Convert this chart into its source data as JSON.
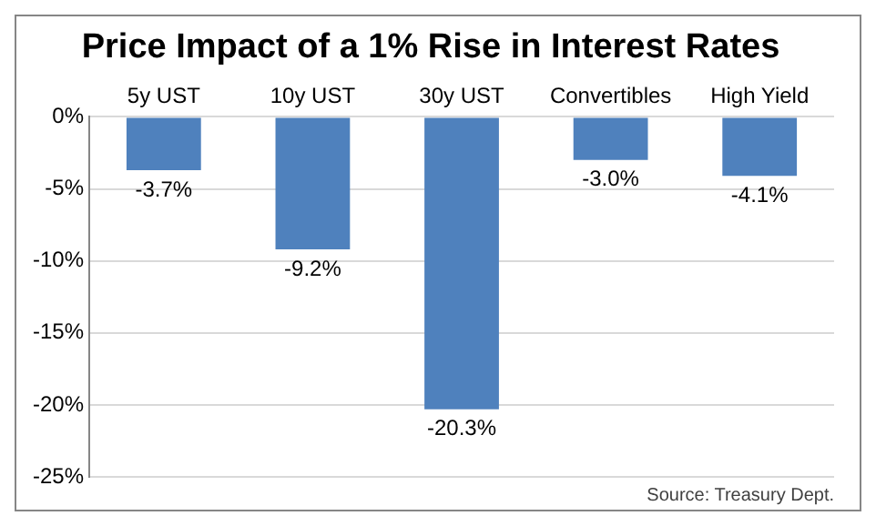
{
  "chart_data": {
    "type": "bar",
    "title": "Price Impact of a 1% Rise in Interest Rates",
    "categories": [
      "5y UST",
      "10y UST",
      "30y UST",
      "Convertibles",
      "High Yield"
    ],
    "values": [
      -3.7,
      -9.2,
      -20.3,
      -3.0,
      -4.1
    ],
    "value_labels": [
      "-3.7%",
      "-9.2%",
      "-20.3%",
      "-3.0%",
      "-4.1%"
    ],
    "color": "#4f81bd",
    "ylim": [
      -25,
      0
    ],
    "yticks": [
      {
        "value": -25,
        "label": "-25%"
      },
      {
        "value": -20,
        "label": "-20%"
      },
      {
        "value": -15,
        "label": "-15%"
      },
      {
        "value": -10,
        "label": "-10%"
      },
      {
        "value": -5,
        "label": "-5%"
      },
      {
        "value": 0,
        "label": "0%"
      }
    ],
    "grid": "y",
    "legend": false,
    "annotations": [
      "Source: Treasury Dept."
    ]
  }
}
